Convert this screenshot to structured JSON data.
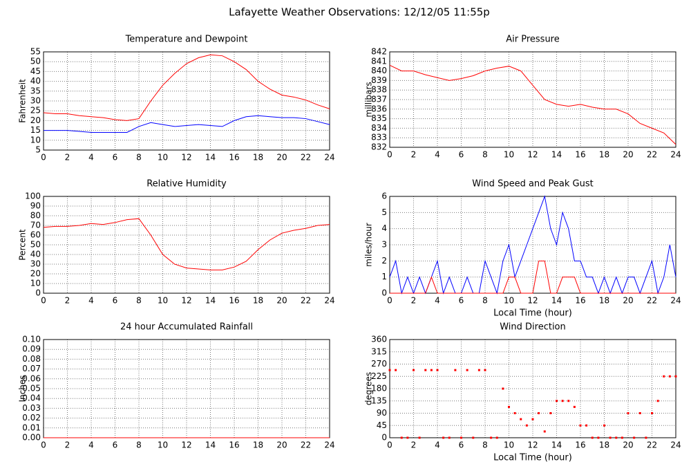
{
  "title": "Lafayette Weather Observations: 12/12/05 11:55p",
  "chart_data": [
    {
      "type": "line",
      "title": "Temperature and Dewpoint",
      "ylabel": "Fahrenheit",
      "x": [
        0,
        1,
        2,
        3,
        4,
        5,
        6,
        7,
        8,
        9,
        10,
        11,
        12,
        13,
        14,
        15,
        16,
        17,
        18,
        19,
        20,
        21,
        22,
        23,
        24
      ],
      "series": [
        {
          "name": "Temperature",
          "color": "#ff0000",
          "values": [
            24,
            23.5,
            23.5,
            22.5,
            22,
            21.5,
            20.5,
            20,
            21,
            30,
            38,
            44,
            49,
            52,
            53.5,
            53,
            50,
            46,
            40,
            36,
            33,
            32,
            30.5,
            28,
            26
          ]
        },
        {
          "name": "Dewpoint",
          "color": "#0000ff",
          "values": [
            15,
            15,
            15,
            14.5,
            14,
            14,
            14,
            14,
            17,
            19,
            18,
            17,
            17.5,
            18,
            17.5,
            17,
            20,
            22,
            22.5,
            22,
            21.5,
            21.5,
            21,
            19.5,
            18
          ]
        }
      ],
      "xlim": [
        0,
        24
      ],
      "xticks": [
        0,
        2,
        4,
        6,
        8,
        10,
        12,
        14,
        16,
        18,
        20,
        22,
        24
      ],
      "ylim": [
        5,
        55
      ],
      "yticks": [
        5,
        10,
        15,
        20,
        25,
        30,
        35,
        40,
        45,
        50,
        55
      ],
      "grid": true
    },
    {
      "type": "line",
      "title": "Air Pressure",
      "ylabel": "millibars",
      "x": [
        0,
        1,
        2,
        3,
        4,
        5,
        6,
        7,
        8,
        9,
        10,
        11,
        12,
        13,
        14,
        15,
        16,
        17,
        18,
        19,
        20,
        21,
        22,
        23,
        24
      ],
      "series": [
        {
          "name": "Pressure",
          "color": "#ff0000",
          "values": [
            840.6,
            840,
            840,
            839.6,
            839.3,
            839,
            839.2,
            839.5,
            840,
            840.3,
            840.5,
            840,
            838.5,
            837,
            836.5,
            836.3,
            836.5,
            836.2,
            836,
            836,
            835.5,
            834.5,
            834,
            833.5,
            832.3
          ]
        }
      ],
      "xlim": [
        0,
        24
      ],
      "xticks": [
        0,
        2,
        4,
        6,
        8,
        10,
        12,
        14,
        16,
        18,
        20,
        22,
        24
      ],
      "ylim": [
        832,
        842
      ],
      "yticks": [
        832,
        833,
        834,
        835,
        836,
        837,
        838,
        839,
        840,
        841,
        842
      ],
      "grid": true
    },
    {
      "type": "line",
      "title": "Relative Humidity",
      "ylabel": "Percent",
      "x": [
        0,
        1,
        2,
        3,
        4,
        5,
        6,
        7,
        8,
        9,
        10,
        11,
        12,
        13,
        14,
        15,
        16,
        17,
        18,
        19,
        20,
        21,
        22,
        23,
        24
      ],
      "series": [
        {
          "name": "Humidity",
          "color": "#ff0000",
          "values": [
            68,
            69,
            69,
            70,
            72,
            71,
            73,
            76,
            77,
            60,
            40,
            30,
            26,
            25,
            24,
            24,
            27,
            33,
            45,
            55,
            62,
            65,
            67,
            70,
            71
          ]
        }
      ],
      "xlim": [
        0,
        24
      ],
      "xticks": [
        0,
        2,
        4,
        6,
        8,
        10,
        12,
        14,
        16,
        18,
        20,
        22,
        24
      ],
      "ylim": [
        0,
        100
      ],
      "yticks": [
        0,
        10,
        20,
        30,
        40,
        50,
        60,
        70,
        80,
        90,
        100
      ],
      "grid": true
    },
    {
      "type": "line",
      "title": "Wind Speed and Peak Gust",
      "ylabel": "miles/hour",
      "xlabel": "Local Time (hour)",
      "x": [
        0,
        0.5,
        1,
        1.5,
        2,
        2.5,
        3,
        3.5,
        4,
        4.5,
        5,
        5.5,
        6,
        6.5,
        7,
        7.5,
        8,
        8.5,
        9,
        9.5,
        10,
        10.5,
        11,
        11.5,
        12,
        12.5,
        13,
        13.5,
        14,
        14.5,
        15,
        15.5,
        16,
        16.5,
        17,
        17.5,
        18,
        18.5,
        19,
        19.5,
        20,
        20.5,
        21,
        21.5,
        22,
        22.5,
        23,
        23.5,
        24
      ],
      "series": [
        {
          "name": "Wind Speed",
          "color": "#0000ff",
          "values": [
            1,
            2,
            0,
            1,
            0,
            1,
            0,
            1,
            2,
            0,
            1,
            0,
            0,
            1,
            0,
            0,
            2,
            1,
            0,
            2,
            3,
            1,
            2,
            3,
            4,
            5,
            6,
            4,
            3,
            5,
            4,
            2,
            2,
            1,
            1,
            0,
            1,
            0,
            1,
            0,
            1,
            1,
            0,
            1,
            2,
            0,
            1,
            3,
            1
          ]
        },
        {
          "name": "Peak Gust",
          "color": "#ff0000",
          "values": [
            0,
            0,
            0,
            0,
            0,
            0,
            0,
            1,
            0,
            0,
            0,
            0,
            0,
            0,
            0,
            0,
            0,
            0,
            0,
            0,
            1,
            1,
            0,
            0,
            0,
            2,
            2,
            0,
            0,
            1,
            1,
            1,
            0,
            0,
            0,
            0,
            0,
            0,
            0,
            0,
            0,
            0,
            0,
            0,
            0,
            0,
            0,
            0,
            0
          ]
        }
      ],
      "xlim": [
        0,
        24
      ],
      "xticks": [
        0,
        2,
        4,
        6,
        8,
        10,
        12,
        14,
        16,
        18,
        20,
        22,
        24
      ],
      "ylim": [
        0,
        6
      ],
      "yticks": [
        0,
        1,
        2,
        3,
        4,
        5,
        6
      ],
      "grid": true
    },
    {
      "type": "line",
      "title": "24 hour Accumulated Rainfall",
      "ylabel": "Inches",
      "x": [
        0,
        1,
        2,
        3,
        4,
        5,
        6,
        7,
        8,
        9,
        10,
        11,
        12,
        13,
        14,
        15,
        16,
        17,
        18,
        19,
        20,
        21,
        22,
        23,
        24
      ],
      "series": [
        {
          "name": "Rainfall",
          "color": "#ff0000",
          "values": [
            0,
            0,
            0,
            0,
            0,
            0,
            0,
            0,
            0,
            0,
            0,
            0,
            0,
            0,
            0,
            0,
            0,
            0,
            0,
            0,
            0,
            0,
            0,
            0,
            0
          ]
        }
      ],
      "xlim": [
        0,
        24
      ],
      "xticks": [
        0,
        2,
        4,
        6,
        8,
        10,
        12,
        14,
        16,
        18,
        20,
        22,
        24
      ],
      "ylim": [
        0,
        0.1
      ],
      "yticks": [
        {
          "value": 0,
          "label": "0.00"
        },
        {
          "value": 0.01,
          "label": "0.01"
        },
        {
          "value": 0.02,
          "label": "0.02"
        },
        {
          "value": 0.03,
          "label": "0.03"
        },
        {
          "value": 0.04,
          "label": "0.04"
        },
        {
          "value": 0.05,
          "label": "0.05"
        },
        {
          "value": 0.06,
          "label": "0.06"
        },
        {
          "value": 0.07,
          "label": "0.07"
        },
        {
          "value": 0.08,
          "label": "0.08"
        },
        {
          "value": 0.09,
          "label": "0.09"
        },
        {
          "value": 0.1,
          "label": "0.10"
        }
      ],
      "grid": true
    },
    {
      "type": "scatter",
      "title": "Wind Direction",
      "ylabel": "degrees",
      "xlabel": "Local Time (hour)",
      "x": [
        0,
        0.5,
        1,
        1.5,
        2,
        2.5,
        3,
        3.5,
        4,
        4.5,
        5,
        5.5,
        6,
        6.5,
        7,
        7.5,
        8,
        8.5,
        9,
        9.5,
        10,
        10.5,
        11,
        11.5,
        12,
        12.5,
        13,
        13.5,
        14,
        14.5,
        15,
        15.5,
        16,
        16.5,
        17,
        17.5,
        18,
        18.5,
        19,
        19.5,
        20,
        20.5,
        21,
        21.5,
        22,
        22.5,
        23,
        23.5,
        24
      ],
      "series": [
        {
          "name": "Direction",
          "color": "#ff0000",
          "values": [
            248,
            248,
            0,
            0,
            248,
            0,
            248,
            248,
            248,
            0,
            0,
            248,
            0,
            248,
            0,
            248,
            248,
            0,
            0,
            180,
            113,
            90,
            68,
            45,
            68,
            90,
            23,
            90,
            135,
            135,
            135,
            113,
            45,
            45,
            0,
            0,
            45,
            0,
            0,
            0,
            90,
            0,
            90,
            0,
            90,
            135,
            225,
            225,
            225
          ]
        }
      ],
      "xlim": [
        0,
        24
      ],
      "xticks": [
        0,
        2,
        4,
        6,
        8,
        10,
        12,
        14,
        16,
        18,
        20,
        22,
        24
      ],
      "ylim": [
        0,
        360
      ],
      "yticks": [
        0,
        45,
        90,
        135,
        180,
        225,
        270,
        315,
        360
      ],
      "grid": true
    }
  ]
}
